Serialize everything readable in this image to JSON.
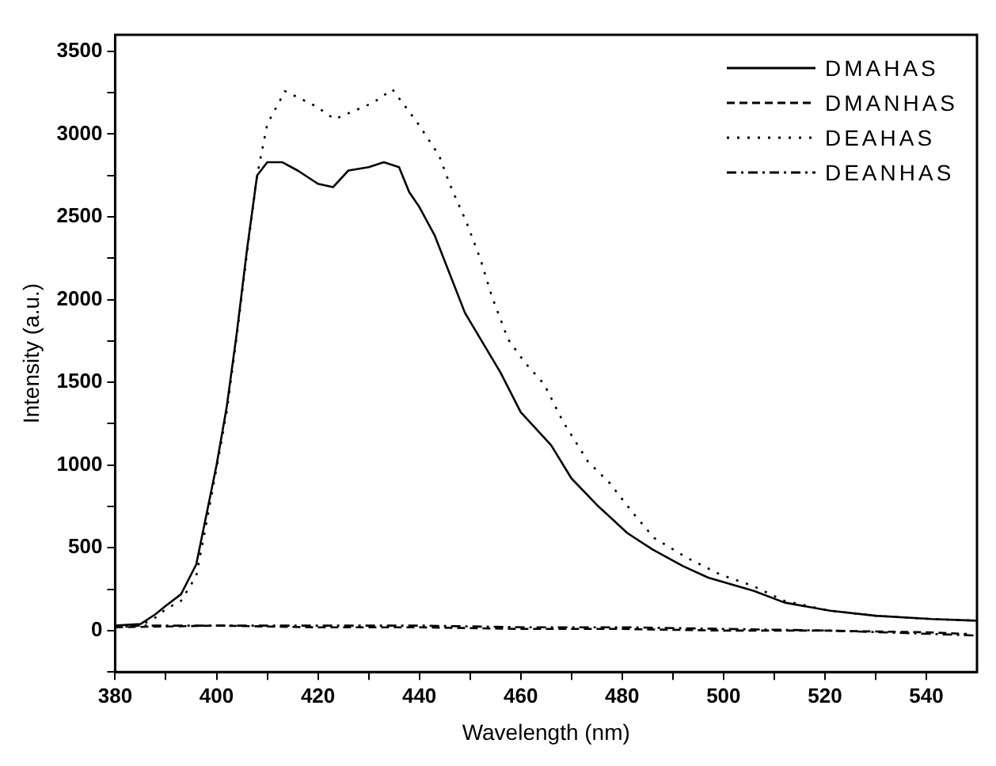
{
  "chart_data": {
    "type": "line",
    "xlabel": "Wavelength (nm)",
    "ylabel": "Intensity (a.u.)",
    "xlim": [
      380,
      550
    ],
    "ylim": [
      -250,
      3600
    ],
    "xticks": [
      380,
      {
        "value": 390,
        "label": null
      },
      400,
      {
        "value": 410,
        "label": null
      },
      420,
      {
        "value": 430,
        "label": null
      },
      440,
      {
        "value": 450,
        "label": null
      },
      460,
      {
        "value": 470,
        "label": null
      },
      480,
      {
        "value": 490,
        "label": null
      },
      500,
      {
        "value": 510,
        "label": null
      },
      520,
      {
        "value": 530,
        "label": null
      },
      540
    ],
    "yticks": [
      {
        "value": -250,
        "label": null
      },
      0,
      {
        "value": 250,
        "label": null
      },
      500,
      {
        "value": 750,
        "label": null
      },
      1000,
      {
        "value": 1250,
        "label": null
      },
      1500,
      {
        "value": 1750,
        "label": null
      },
      2000,
      {
        "value": 2250,
        "label": null
      },
      2500,
      {
        "value": 2750,
        "label": null
      },
      3000,
      {
        "value": 3250,
        "label": null
      },
      3500
    ],
    "grid": false,
    "legend": "top right",
    "marker": "none",
    "series": [
      {
        "name": "DMAHAS",
        "color": "#000000",
        "line_style": "solid",
        "x": [
          380,
          385,
          388,
          390,
          393,
          396,
          398,
          400,
          402,
          404,
          406,
          408,
          410,
          413,
          416,
          420,
          423,
          426,
          430,
          433,
          436,
          438,
          440,
          443,
          449,
          456,
          460,
          466,
          470,
          475,
          481,
          486,
          492,
          497,
          506,
          512,
          521,
          530,
          541,
          550
        ],
        "values": [
          30,
          40,
          100,
          150,
          220,
          400,
          700,
          1000,
          1350,
          1800,
          2300,
          2750,
          2830,
          2830,
          2780,
          2700,
          2680,
          2780,
          2800,
          2830,
          2800,
          2650,
          2560,
          2390,
          1920,
          1560,
          1320,
          1120,
          920,
          760,
          590,
          490,
          390,
          320,
          240,
          170,
          120,
          90,
          70,
          60
        ]
      },
      {
        "name": "DMANHAS",
        "color": "#000000",
        "line_style": "dashed",
        "x": [
          380,
          400,
          420,
          440,
          460,
          480,
          500,
          520,
          540,
          548
        ],
        "values": [
          20,
          30,
          20,
          20,
          10,
          10,
          0,
          0,
          -10,
          -20
        ]
      },
      {
        "name": "DEAHAS",
        "color": "#000000",
        "line_style": "dotted",
        "x": [
          380,
          385,
          388,
          390,
          393,
          396,
          398,
          400,
          402,
          404,
          406,
          408,
          410,
          413.5,
          419.5,
          423.3,
          430.9,
          434.7,
          439.6,
          443.9,
          446.1,
          449.4,
          452.1,
          454.3,
          457.5,
          460.8,
          464.6,
          468.4,
          473.3,
          477.6,
          481.9,
          486.3,
          492.8,
          499.3,
          505.8,
          512,
          521,
          530,
          541,
          550
        ],
        "values": [
          20,
          30,
          80,
          130,
          180,
          330,
          650,
          980,
          1320,
          1780,
          2280,
          2750,
          3060,
          3260,
          3170,
          3090,
          3190,
          3270,
          3070,
          2870,
          2690,
          2460,
          2240,
          2020,
          1760,
          1620,
          1490,
          1260,
          1020,
          890,
          720,
          560,
          440,
          340,
          270,
          180,
          120,
          90,
          70,
          60
        ]
      },
      {
        "name": "DEANHAS",
        "color": "#000000",
        "line_style": "dashdot",
        "x": [
          383,
          401,
          421,
          441,
          461,
          481,
          501,
          521,
          541,
          550
        ],
        "values": [
          30,
          30,
          30,
          30,
          20,
          20,
          10,
          0,
          -20,
          -30
        ]
      }
    ]
  }
}
